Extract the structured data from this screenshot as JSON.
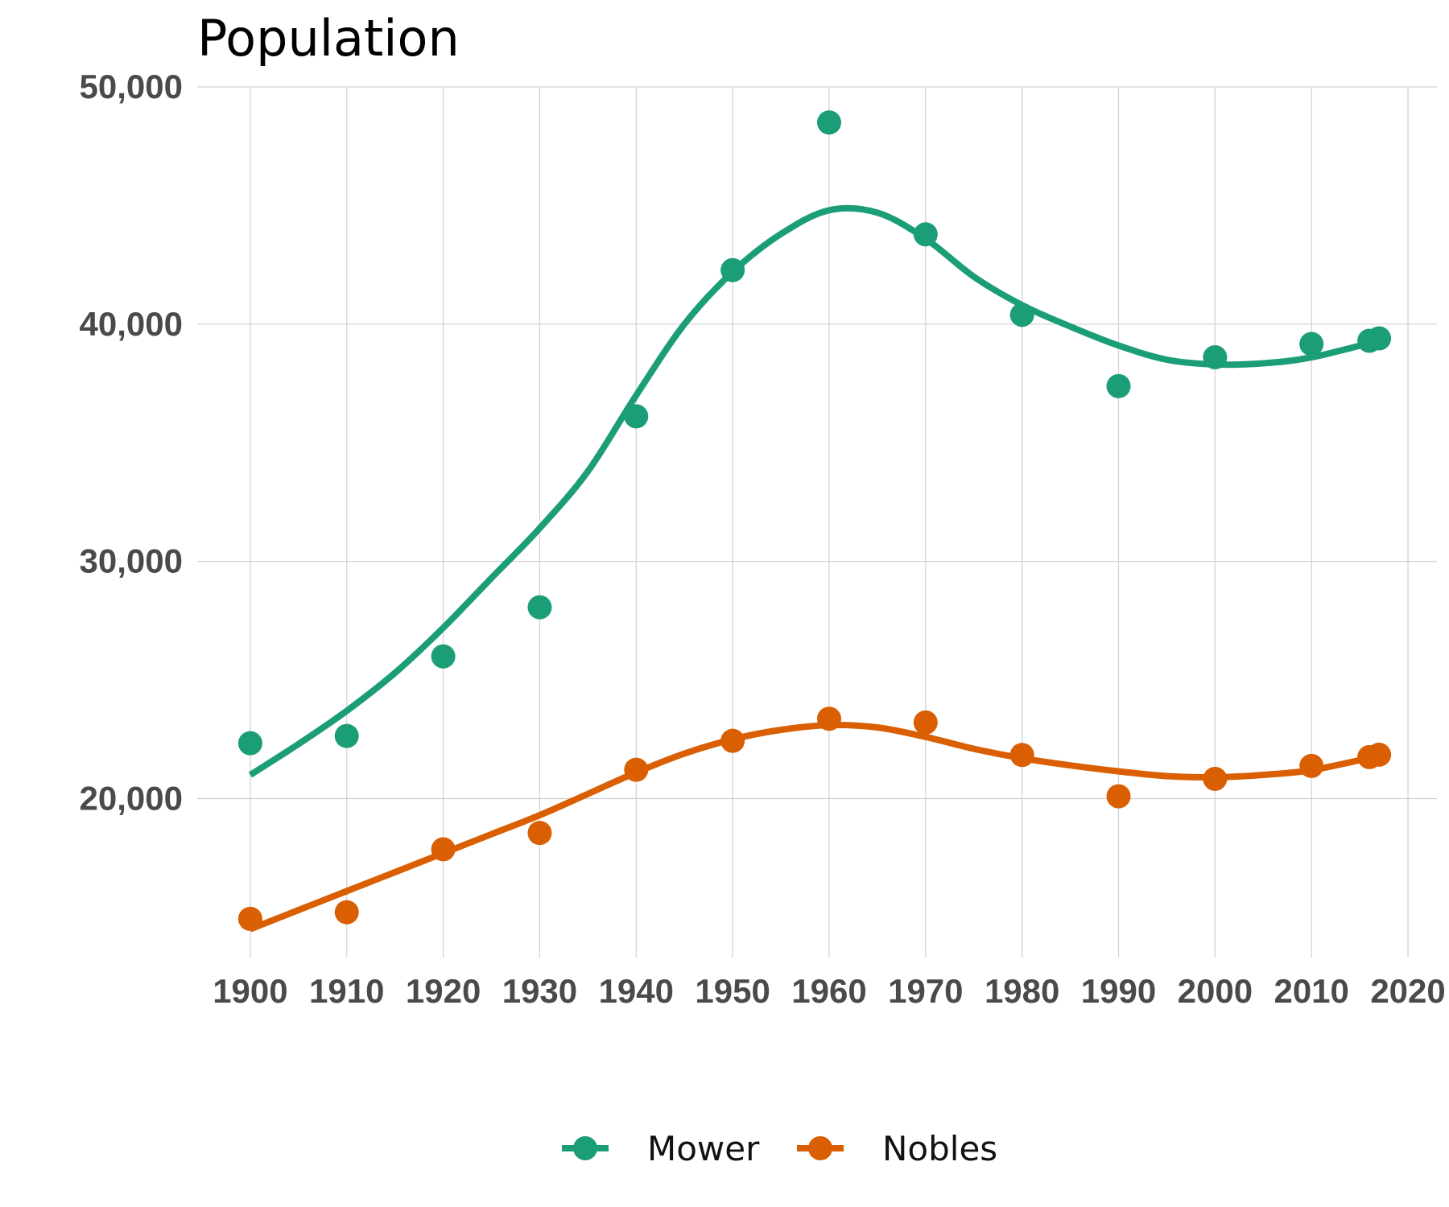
{
  "chart_data": {
    "type": "scatter",
    "title": "Population",
    "xlabel": "",
    "ylabel": "",
    "xlim": [
      1894.5,
      2023
    ],
    "ylim": [
      13300,
      50000
    ],
    "x_ticks": [
      1900,
      1910,
      1920,
      1930,
      1940,
      1950,
      1960,
      1970,
      1980,
      1990,
      2000,
      2010,
      2020
    ],
    "x_tick_labels": [
      "1900",
      "1910",
      "1920",
      "1930",
      "1940",
      "1950",
      "1960",
      "1970",
      "1980",
      "1990",
      "2000",
      "2010",
      "2020"
    ],
    "y_ticks": [
      20000,
      30000,
      40000,
      50000
    ],
    "y_tick_labels": [
      "20,000",
      "30,000",
      "40,000",
      "50,000"
    ],
    "grid": true,
    "legend_position": "bottom",
    "series": [
      {
        "name": "Mower",
        "color": "#1b9e77",
        "points": [
          {
            "x": 1900,
            "y": 22335
          },
          {
            "x": 1910,
            "y": 22640
          },
          {
            "x": 1920,
            "y": 25993
          },
          {
            "x": 1930,
            "y": 28065
          },
          {
            "x": 1940,
            "y": 36113
          },
          {
            "x": 1950,
            "y": 42277
          },
          {
            "x": 1960,
            "y": 48498
          },
          {
            "x": 1970,
            "y": 43783
          },
          {
            "x": 1980,
            "y": 40390
          },
          {
            "x": 1990,
            "y": 37385
          },
          {
            "x": 2000,
            "y": 38603
          },
          {
            "x": 2010,
            "y": 39163
          },
          {
            "x": 2016,
            "y": 39300
          },
          {
            "x": 2017,
            "y": 39400
          }
        ],
        "trend": [
          {
            "x": 1900,
            "y": 21000
          },
          {
            "x": 1905,
            "y": 22300
          },
          {
            "x": 1910,
            "y": 23700
          },
          {
            "x": 1915,
            "y": 25300
          },
          {
            "x": 1920,
            "y": 27200
          },
          {
            "x": 1925,
            "y": 29300
          },
          {
            "x": 1930,
            "y": 31400
          },
          {
            "x": 1935,
            "y": 33800
          },
          {
            "x": 1940,
            "y": 37000
          },
          {
            "x": 1945,
            "y": 40000
          },
          {
            "x": 1950,
            "y": 42200
          },
          {
            "x": 1955,
            "y": 43800
          },
          {
            "x": 1960,
            "y": 44800
          },
          {
            "x": 1965,
            "y": 44700
          },
          {
            "x": 1970,
            "y": 43600
          },
          {
            "x": 1975,
            "y": 42000
          },
          {
            "x": 1980,
            "y": 40800
          },
          {
            "x": 1985,
            "y": 39900
          },
          {
            "x": 1990,
            "y": 39100
          },
          {
            "x": 1995,
            "y": 38500
          },
          {
            "x": 2000,
            "y": 38300
          },
          {
            "x": 2005,
            "y": 38350
          },
          {
            "x": 2010,
            "y": 38600
          },
          {
            "x": 2017,
            "y": 39300
          }
        ]
      },
      {
        "name": "Nobles",
        "color": "#d95f02",
        "points": [
          {
            "x": 1900,
            "y": 14932
          },
          {
            "x": 1910,
            "y": 15210
          },
          {
            "x": 1920,
            "y": 17864
          },
          {
            "x": 1930,
            "y": 18552
          },
          {
            "x": 1940,
            "y": 21215
          },
          {
            "x": 1950,
            "y": 22435
          },
          {
            "x": 1960,
            "y": 23365
          },
          {
            "x": 1970,
            "y": 23208
          },
          {
            "x": 1980,
            "y": 21840
          },
          {
            "x": 1990,
            "y": 20098
          },
          {
            "x": 2000,
            "y": 20832
          },
          {
            "x": 2010,
            "y": 21378
          },
          {
            "x": 2016,
            "y": 21750
          },
          {
            "x": 2017,
            "y": 21850
          }
        ],
        "trend": [
          {
            "x": 1900,
            "y": 14500
          },
          {
            "x": 1905,
            "y": 15300
          },
          {
            "x": 1910,
            "y": 16100
          },
          {
            "x": 1915,
            "y": 16900
          },
          {
            "x": 1920,
            "y": 17700
          },
          {
            "x": 1925,
            "y": 18500
          },
          {
            "x": 1930,
            "y": 19300
          },
          {
            "x": 1935,
            "y": 20200
          },
          {
            "x": 1940,
            "y": 21100
          },
          {
            "x": 1945,
            "y": 21900
          },
          {
            "x": 1950,
            "y": 22500
          },
          {
            "x": 1955,
            "y": 22900
          },
          {
            "x": 1960,
            "y": 23100
          },
          {
            "x": 1965,
            "y": 23000
          },
          {
            "x": 1970,
            "y": 22600
          },
          {
            "x": 1975,
            "y": 22100
          },
          {
            "x": 1980,
            "y": 21700
          },
          {
            "x": 1985,
            "y": 21400
          },
          {
            "x": 1990,
            "y": 21150
          },
          {
            "x": 1995,
            "y": 20950
          },
          {
            "x": 2000,
            "y": 20900
          },
          {
            "x": 2005,
            "y": 21000
          },
          {
            "x": 2010,
            "y": 21200
          },
          {
            "x": 2017,
            "y": 21800
          }
        ]
      }
    ]
  }
}
